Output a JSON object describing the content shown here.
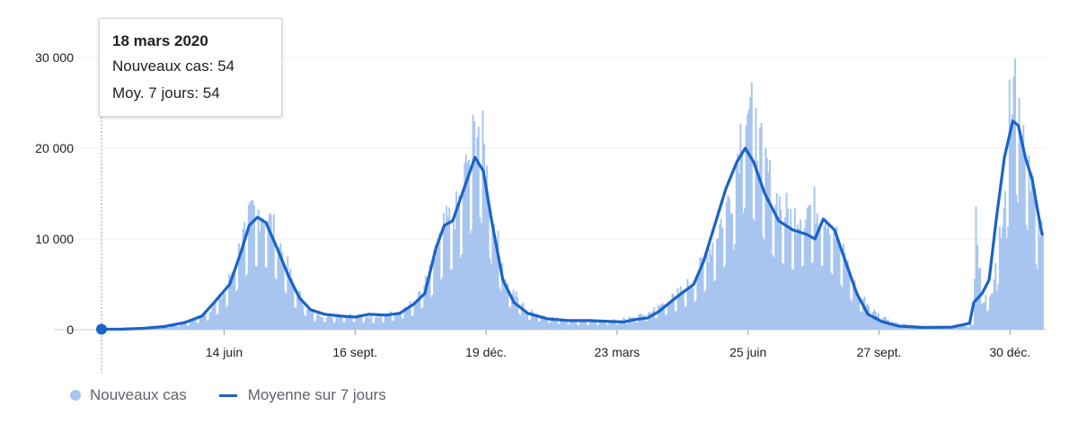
{
  "chart_data": {
    "type": "bar+line",
    "y_ticks": [
      {
        "value": 0,
        "label": "0"
      },
      {
        "value": 10000,
        "label": "10 000"
      },
      {
        "value": 20000,
        "label": "20 000"
      },
      {
        "value": 30000,
        "label": "30 000"
      }
    ],
    "ylim": [
      0,
      34000
    ],
    "x_range_days": [
      0,
      1017
    ],
    "x_ticks": [
      {
        "day": 88,
        "label": "14 juin"
      },
      {
        "day": 182,
        "label": "16 sept."
      },
      {
        "day": 276,
        "label": "19 déc."
      },
      {
        "day": 370,
        "label": "23 mars"
      },
      {
        "day": 464,
        "label": "25 juin"
      },
      {
        "day": 558,
        "label": "27 sept."
      },
      {
        "day": 652,
        "label": "30 déc."
      }
    ],
    "bars_keypoints": [
      [
        0,
        54
      ],
      [
        20,
        100
      ],
      [
        40,
        250
      ],
      [
        60,
        700
      ],
      [
        75,
        1800
      ],
      [
        88,
        4000
      ],
      [
        100,
        9500
      ],
      [
        108,
        12800
      ],
      [
        118,
        12500
      ],
      [
        128,
        9000
      ],
      [
        138,
        4500
      ],
      [
        150,
        1800
      ],
      [
        165,
        1400
      ],
      [
        182,
        1600
      ],
      [
        198,
        1300
      ],
      [
        212,
        2000
      ],
      [
        225,
        3000
      ],
      [
        235,
        6000
      ],
      [
        245,
        11000
      ],
      [
        255,
        13000
      ],
      [
        265,
        20000
      ],
      [
        271,
        22500
      ],
      [
        280,
        12000
      ],
      [
        290,
        5000
      ],
      [
        305,
        2000
      ],
      [
        325,
        1200
      ],
      [
        345,
        900
      ],
      [
        370,
        1000
      ],
      [
        380,
        1300
      ],
      [
        392,
        1800
      ],
      [
        410,
        3500
      ],
      [
        425,
        5500
      ],
      [
        440,
        10000
      ],
      [
        452,
        15000
      ],
      [
        462,
        25500
      ],
      [
        470,
        20500
      ],
      [
        482,
        14500
      ],
      [
        495,
        12000
      ],
      [
        510,
        13500
      ],
      [
        520,
        12500
      ],
      [
        530,
        9000
      ],
      [
        542,
        4000
      ],
      [
        555,
        1800
      ],
      [
        570,
        700
      ],
      [
        590,
        300
      ],
      [
        610,
        400
      ],
      [
        625,
        500
      ],
      [
        628,
        17000
      ],
      [
        631,
        2500
      ],
      [
        640,
        5000
      ],
      [
        648,
        16000
      ],
      [
        654,
        30000
      ],
      [
        658,
        24000
      ],
      [
        663,
        21000
      ],
      [
        668,
        15500
      ],
      [
        672,
        11000
      ],
      [
        675,
        10000
      ]
    ],
    "series": [
      {
        "name": "Nouveaux cas",
        "type": "bar",
        "color": "#a8c5f0"
      },
      {
        "name": "Moyenne sur 7 jours",
        "type": "line",
        "color": "#1a63c8",
        "points": [
          [
            0,
            54
          ],
          [
            15,
            60
          ],
          [
            30,
            150
          ],
          [
            45,
            350
          ],
          [
            60,
            800
          ],
          [
            72,
            1500
          ],
          [
            82,
            3200
          ],
          [
            92,
            5000
          ],
          [
            100,
            8500
          ],
          [
            106,
            11500
          ],
          [
            112,
            12400
          ],
          [
            118,
            11800
          ],
          [
            126,
            9000
          ],
          [
            134,
            6000
          ],
          [
            142,
            3500
          ],
          [
            150,
            2200
          ],
          [
            160,
            1700
          ],
          [
            172,
            1500
          ],
          [
            182,
            1400
          ],
          [
            192,
            1700
          ],
          [
            204,
            1600
          ],
          [
            214,
            1800
          ],
          [
            224,
            2800
          ],
          [
            232,
            4000
          ],
          [
            240,
            9000
          ],
          [
            246,
            11500
          ],
          [
            252,
            12000
          ],
          [
            260,
            15500
          ],
          [
            268,
            19000
          ],
          [
            274,
            17500
          ],
          [
            280,
            12000
          ],
          [
            288,
            5500
          ],
          [
            296,
            3000
          ],
          [
            306,
            1800
          ],
          [
            320,
            1200
          ],
          [
            335,
            1000
          ],
          [
            350,
            1000
          ],
          [
            365,
            900
          ],
          [
            375,
            850
          ],
          [
            382,
            1100
          ],
          [
            392,
            1300
          ],
          [
            400,
            2000
          ],
          [
            412,
            3500
          ],
          [
            425,
            5000
          ],
          [
            432,
            7500
          ],
          [
            440,
            11500
          ],
          [
            448,
            15500
          ],
          [
            456,
            18500
          ],
          [
            462,
            20000
          ],
          [
            468,
            18500
          ],
          [
            476,
            15000
          ],
          [
            486,
            12000
          ],
          [
            496,
            11000
          ],
          [
            506,
            10500
          ],
          [
            512,
            10000
          ],
          [
            518,
            12200
          ],
          [
            526,
            11000
          ],
          [
            534,
            7500
          ],
          [
            542,
            4000
          ],
          [
            550,
            1700
          ],
          [
            560,
            900
          ],
          [
            572,
            400
          ],
          [
            590,
            250
          ],
          [
            610,
            280
          ],
          [
            623,
            700
          ],
          [
            626,
            3000
          ],
          [
            632,
            4000
          ],
          [
            637,
            5500
          ],
          [
            642,
            12000
          ],
          [
            648,
            19000
          ],
          [
            654,
            23000
          ],
          [
            658,
            22500
          ],
          [
            663,
            19000
          ],
          [
            668,
            16500
          ],
          [
            672,
            13000
          ],
          [
            675,
            10500
          ]
        ]
      }
    ],
    "tooltip": {
      "date": "18 mars 2020",
      "rows": [
        {
          "label": "Nouveaux cas: ",
          "value": "54"
        },
        {
          "label": "Moy. 7 jours: ",
          "value": "54"
        }
      ]
    },
    "legend": [
      {
        "label": "Nouveaux cas",
        "marker": "dot",
        "color": "#a8c5f0"
      },
      {
        "label": "Moyenne sur 7 jours",
        "marker": "line",
        "color": "#1a63c8"
      }
    ],
    "legend_position": "bottom-left",
    "grid": true
  }
}
